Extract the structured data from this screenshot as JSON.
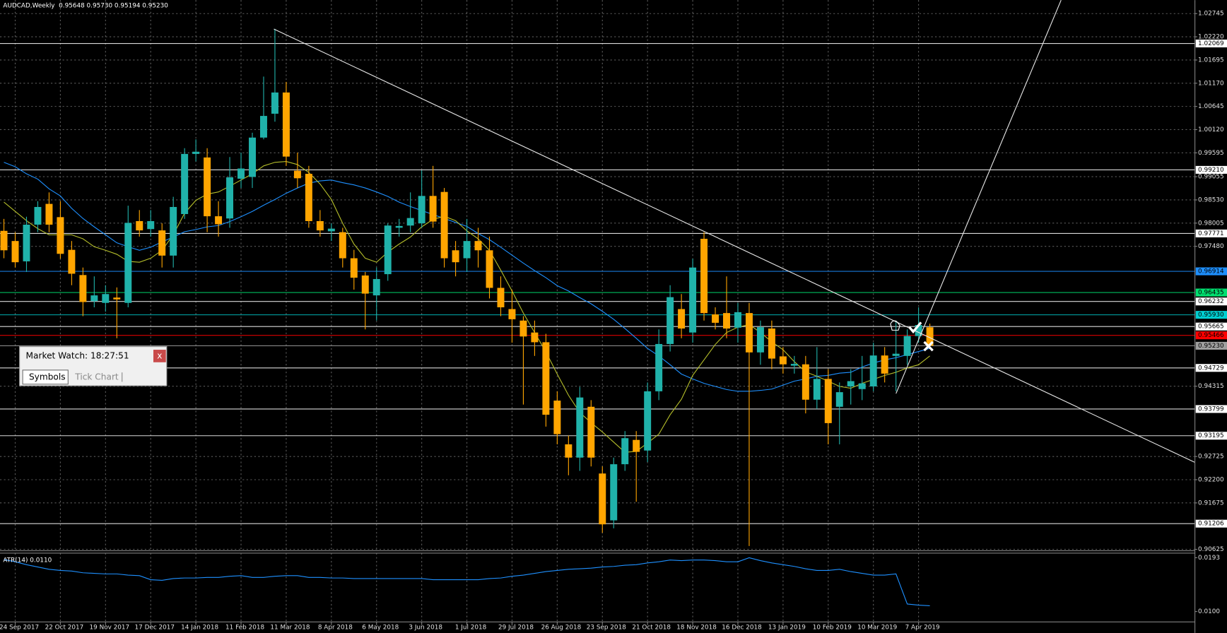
{
  "chart_data": [
    {
      "type": "candlestick",
      "title": "AUDCAD,Weekly  0.95648 0.95730 0.95194 0.95230",
      "categories": [
        null,
        "24 Sep 2017",
        null,
        null,
        null,
        "22 Oct 2017",
        null,
        null,
        null,
        "19 Nov 2017",
        null,
        null,
        null,
        "17 Dec 2017",
        null,
        null,
        null,
        "14 Jan 2018",
        null,
        null,
        null,
        "11 Feb 2018",
        null,
        null,
        null,
        "11 Mar 2018",
        null,
        null,
        null,
        "8 Apr 2018",
        null,
        null,
        null,
        "6 May 2018",
        null,
        null,
        null,
        "3 Jun 2018",
        null,
        null,
        null,
        "1 Jul 2018",
        null,
        null,
        null,
        "29 Jul 2018",
        null,
        null,
        null,
        "26 Aug 2018",
        null,
        null,
        null,
        "23 Sep 2018",
        null,
        null,
        null,
        "21 Oct 2018",
        null,
        null,
        null,
        "18 Nov 2018",
        null,
        null,
        null,
        "16 Dec 2018",
        null,
        null,
        null,
        "13 Jan 2019",
        null,
        null,
        null,
        "10 Feb 2019",
        null,
        null,
        null,
        "10 Mar 2019",
        null,
        null,
        null,
        "7 Apr 2019",
        null
      ],
      "open": [
        0.9783,
        0.976,
        0.9714,
        0.9797,
        0.9844,
        0.9814,
        0.974,
        0.9683,
        0.9624,
        0.962,
        0.9632,
        0.962,
        0.9805,
        0.9787,
        0.9784,
        0.9727,
        0.9821,
        0.9957,
        0.9949,
        0.9816,
        0.9811,
        0.9901,
        0.9905,
        0.9994,
        1.0048,
        1.0096,
        0.9919,
        0.9912,
        0.9805,
        0.9782,
        0.978,
        0.9721,
        0.9682,
        0.9637,
        0.9685,
        0.979,
        0.9795,
        0.98,
        0.9862,
        0.9871,
        0.9739,
        0.9721,
        0.976,
        0.9739,
        0.9654,
        0.9606,
        0.958,
        0.9553,
        0.9531,
        0.9399,
        0.93,
        0.927,
        0.9385,
        0.9234,
        0.9128,
        0.9255,
        0.931,
        0.9286,
        0.942,
        0.9527,
        0.9606,
        0.9553,
        0.9765,
        0.9594,
        0.9597,
        0.9564,
        0.9597,
        0.9508,
        0.9562,
        0.9499,
        0.9478,
        0.9481,
        0.9401,
        0.9448,
        0.9385,
        0.9431,
        0.9425,
        0.9431,
        0.9501,
        0.95,
        0.95,
        0.9545,
        0.95648
      ],
      "high": [
        0.981,
        0.978,
        0.9815,
        0.985,
        0.987,
        0.985,
        0.976,
        0.97,
        0.968,
        0.966,
        0.9655,
        0.984,
        0.983,
        0.983,
        0.98,
        0.986,
        0.997,
        0.999,
        0.997,
        0.985,
        0.995,
        0.996,
        1.0005,
        1.0132,
        1.024,
        1.012,
        0.996,
        0.993,
        0.983,
        0.98,
        0.979,
        0.974,
        0.969,
        0.97,
        0.98,
        0.981,
        0.987,
        0.992,
        0.993,
        0.988,
        0.976,
        0.981,
        0.979,
        0.977,
        0.968,
        0.965,
        0.959,
        0.958,
        0.955,
        0.942,
        0.932,
        0.943,
        0.94,
        0.925,
        0.927,
        0.933,
        0.933,
        0.944,
        0.956,
        0.966,
        0.964,
        0.972,
        0.978,
        0.961,
        0.968,
        0.962,
        0.962,
        0.958,
        0.958,
        0.952,
        0.95,
        0.95,
        0.952,
        0.947,
        0.944,
        0.947,
        0.95,
        0.953,
        0.952,
        0.958,
        0.956,
        0.961,
        0.9573
      ],
      "low": [
        0.9721,
        0.97,
        0.969,
        0.978,
        0.978,
        0.972,
        0.966,
        0.959,
        0.961,
        0.96,
        0.954,
        0.961,
        0.977,
        0.977,
        0.97,
        0.97,
        0.981,
        0.994,
        0.978,
        0.977,
        0.979,
        0.988,
        0.988,
        0.999,
        1.003,
        0.993,
        0.988,
        0.979,
        0.977,
        0.976,
        0.97,
        0.965,
        0.956,
        0.958,
        0.967,
        0.977,
        0.978,
        0.979,
        0.979,
        0.97,
        0.968,
        0.969,
        0.97,
        0.963,
        0.959,
        0.953,
        0.939,
        0.95,
        0.934,
        0.93,
        0.923,
        0.924,
        0.925,
        0.91,
        0.911,
        0.924,
        0.917,
        0.926,
        0.94,
        0.951,
        0.954,
        0.953,
        0.958,
        0.956,
        0.954,
        0.953,
        0.907,
        0.948,
        0.947,
        0.946,
        0.946,
        0.937,
        0.938,
        0.93,
        0.93,
        0.939,
        0.94,
        0.942,
        0.944,
        0.942,
        0.948,
        0.953,
        0.95194
      ],
      "close": [
        0.9739,
        0.9712,
        0.9797,
        0.9837,
        0.9797,
        0.9731,
        0.9686,
        0.9622,
        0.9637,
        0.964,
        0.9628,
        0.9801,
        0.9784,
        0.9805,
        0.9727,
        0.9837,
        0.9957,
        0.9962,
        0.9816,
        0.9798,
        0.9904,
        0.9924,
        0.9994,
        1.0043,
        1.0096,
        0.9951,
        0.9902,
        0.9805,
        0.9784,
        0.9788,
        0.9721,
        0.9677,
        0.9641,
        0.9674,
        0.9795,
        0.9794,
        0.9812,
        0.9862,
        0.9804,
        0.9721,
        0.9712,
        0.976,
        0.9739,
        0.9654,
        0.961,
        0.9583,
        0.9544,
        0.9531,
        0.9367,
        0.9323,
        0.927,
        0.9406,
        0.927,
        0.9119,
        0.9255,
        0.9314,
        0.9283,
        0.942,
        0.9527,
        0.9633,
        0.9562,
        0.97,
        0.9597,
        0.9575,
        0.9562,
        0.9599,
        0.9508,
        0.9565,
        0.9494,
        0.9481,
        0.9482,
        0.9401,
        0.9448,
        0.9348,
        0.9418,
        0.9443,
        0.9438,
        0.9501,
        0.946,
        0.9505,
        0.9545,
        0.957,
        0.9523
      ],
      "up_color": "#20b2aa",
      "down_color": "#ffa500",
      "series": [
        {
          "color": "#1e90ff",
          "values": [
            0.9938,
            0.9928,
            0.9912,
            0.99,
            0.9878,
            0.9862,
            0.9834,
            0.9811,
            0.9792,
            0.9774,
            0.9756,
            0.9747,
            0.9739,
            0.9746,
            0.9758,
            0.9769,
            0.9781,
            0.9786,
            0.9792,
            0.9795,
            0.9804,
            0.9815,
            0.9827,
            0.9841,
            0.9854,
            0.9868,
            0.988,
            0.9891,
            0.9896,
            0.9898,
            0.9892,
            0.9887,
            0.988,
            0.9871,
            0.9861,
            0.9848,
            0.9838,
            0.9829,
            0.982,
            0.9811,
            0.9802,
            0.9793,
            0.9777,
            0.9763,
            0.9746,
            0.9728,
            0.971,
            0.9693,
            0.9677,
            0.9659,
            0.9647,
            0.9632,
            0.9618,
            0.9601,
            0.9583,
            0.9562,
            0.954,
            0.9517,
            0.95,
            0.948,
            0.9459,
            0.9448,
            0.9438,
            0.9431,
            0.9424,
            0.942,
            0.942,
            0.9422,
            0.9425,
            0.9434,
            0.9443,
            0.9448,
            0.9454,
            0.9456,
            0.9461,
            0.9463,
            0.9475,
            0.9484,
            0.9491,
            0.9496,
            0.9503,
            0.951,
            0.9517
          ]
        },
        {
          "color": "#b4bd2a",
          "values": [
            0.9848,
            0.9827,
            0.9806,
            0.9788,
            0.9774,
            0.9774,
            0.9774,
            0.9765,
            0.9747,
            0.9739,
            0.973,
            0.9714,
            0.9712,
            0.9721,
            0.9739,
            0.9774,
            0.9823,
            0.9852,
            0.9866,
            0.9871,
            0.9884,
            0.9898,
            0.9912,
            0.993,
            0.9938,
            0.994,
            0.9933,
            0.9915,
            0.9889,
            0.9854,
            0.98,
            0.9753,
            0.9721,
            0.9712,
            0.9735,
            0.9753,
            0.9769,
            0.9792,
            0.9809,
            0.9816,
            0.9806,
            0.9783,
            0.9765,
            0.9739,
            0.9694,
            0.9647,
            0.9597,
            0.9553,
            0.9509,
            0.9459,
            0.9411,
            0.9372,
            0.9349,
            0.9328,
            0.9305,
            0.9282,
            0.9284,
            0.9303,
            0.9323,
            0.9367,
            0.9402,
            0.9456,
            0.9491,
            0.9526,
            0.9553,
            0.9565,
            0.9571,
            0.9553,
            0.9532,
            0.9514,
            0.9487,
            0.9464,
            0.9454,
            0.9443,
            0.9431,
            0.9427,
            0.9438,
            0.9447,
            0.9456,
            0.9463,
            0.9473,
            0.948,
            0.95
          ]
        }
      ],
      "levels": [
        {
          "value": 1.02069,
          "color": "#ffffff"
        },
        {
          "value": 0.9921,
          "label": "0.99210",
          "color": "#ffffff"
        },
        {
          "value": 0.97771,
          "color": "#ffffff"
        },
        {
          "value": 0.96914,
          "color": "#1e90ff"
        },
        {
          "value": 0.96435,
          "color": "#00e070"
        },
        {
          "value": 0.96232,
          "color": "#ffffff"
        },
        {
          "value": 0.9593,
          "label": "0.95930",
          "color": "#00ced1"
        },
        {
          "value": 0.95665,
          "color": "#ffffff"
        },
        {
          "value": 0.95466,
          "color": "#ff0000"
        },
        {
          "value": 0.9523,
          "label": "0.95230",
          "color": "#a0a0a0"
        },
        {
          "value": 0.94729,
          "color": "#ffffff"
        },
        {
          "value": 0.93799,
          "color": "#ffffff"
        },
        {
          "value": 0.93195,
          "color": "#ffffff"
        },
        {
          "value": 0.91206,
          "color": "#ffffff"
        }
      ],
      "ylim": [
        0.9061,
        1.0305
      ],
      "yticks": [
        1.02745,
        {
          "value": 1.0222,
          "label": "1.02220"
        },
        1.01695,
        {
          "value": 1.0117,
          "label": "1.01170"
        },
        1.00645,
        {
          "value": 1.0012,
          "label": "1.00120"
        },
        0.99595,
        0.99055,
        {
          "value": 0.9853,
          "label": "0.98530"
        },
        0.98005,
        {
          "value": 0.9748,
          "label": "0.97480"
        },
        0.94315,
        0.92725,
        {
          "value": 0.922,
          "label": "0.92200"
        },
        0.91675,
        0.90625
      ],
      "grid": true
    },
    {
      "type": "line",
      "title": "ATR(14) 0.0110",
      "series": [
        {
          "color": "#1e90ff",
          "values": [
            0.019,
            0.0186,
            0.0181,
            0.0177,
            0.0173,
            0.0171,
            0.017,
            0.0167,
            0.0166,
            0.0165,
            0.0165,
            0.0163,
            0.0162,
            0.0155,
            0.0154,
            0.0157,
            0.0158,
            0.0158,
            0.0159,
            0.0159,
            0.0161,
            0.0162,
            0.0159,
            0.0159,
            0.0161,
            0.0162,
            0.0162,
            0.0159,
            0.0159,
            0.0158,
            0.0158,
            0.0157,
            0.0157,
            0.0157,
            0.0157,
            0.0157,
            0.0157,
            0.0157,
            0.0155,
            0.0155,
            0.0155,
            0.0155,
            0.0155,
            0.0157,
            0.0158,
            0.0161,
            0.0163,
            0.0166,
            0.0169,
            0.0171,
            0.0173,
            0.0174,
            0.0175,
            0.0177,
            0.0178,
            0.018,
            0.0181,
            0.0184,
            0.0186,
            0.0189,
            0.0188,
            0.0189,
            0.0189,
            0.0188,
            0.0186,
            0.0186,
            0.0193,
            0.0188,
            0.0184,
            0.0181,
            0.0178,
            0.0174,
            0.0171,
            0.0171,
            0.0173,
            0.0169,
            0.0166,
            0.0163,
            0.0163,
            0.0165,
            0.0113,
            0.0111,
            0.011
          ]
        }
      ],
      "ylim": [
        0.0082,
        0.0201
      ],
      "yticks": [
        0.0193,
        {
          "value": 0.01,
          "label": "0.0100"
        }
      ]
    }
  ],
  "market_watch": {
    "title": "Market Watch: 18:27:51",
    "close": "x",
    "tabs": [
      "Symbols",
      "Tick Chart"
    ]
  }
}
